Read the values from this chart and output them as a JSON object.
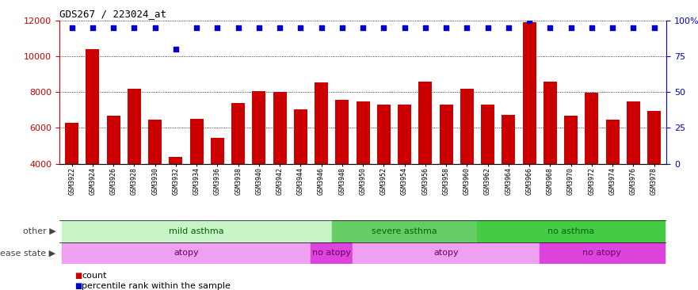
{
  "title": "GDS267 / 223024_at",
  "samples": [
    "GSM3922",
    "GSM3924",
    "GSM3926",
    "GSM3928",
    "GSM3930",
    "GSM3932",
    "GSM3934",
    "GSM3936",
    "GSM3938",
    "GSM3940",
    "GSM3942",
    "GSM3944",
    "GSM3946",
    "GSM3948",
    "GSM3950",
    "GSM3952",
    "GSM3954",
    "GSM3956",
    "GSM3958",
    "GSM3960",
    "GSM3962",
    "GSM3964",
    "GSM3966",
    "GSM3968",
    "GSM3970",
    "GSM3972",
    "GSM3974",
    "GSM3976",
    "GSM3978"
  ],
  "values": [
    6300,
    10400,
    6700,
    8200,
    6450,
    4400,
    6500,
    5450,
    7400,
    8050,
    8000,
    7050,
    8550,
    7550,
    7500,
    7300,
    7300,
    8600,
    7300,
    8200,
    7300,
    6750,
    11900,
    8600,
    6700,
    7950,
    6450,
    7500,
    6950
  ],
  "percentile_values": [
    95,
    95,
    95,
    95,
    95,
    80,
    95,
    95,
    95,
    95,
    95,
    95,
    95,
    95,
    95,
    95,
    95,
    95,
    95,
    95,
    95,
    95,
    100,
    95,
    95,
    95,
    95,
    95,
    95
  ],
  "ylim_left": [
    4000,
    12000
  ],
  "yticks_left": [
    4000,
    6000,
    8000,
    10000,
    12000
  ],
  "yticks_right": [
    0,
    25,
    50,
    75,
    100
  ],
  "bar_color": "#cc0000",
  "dot_color": "#0000cc",
  "groups": [
    {
      "label": "mild asthma",
      "start": 0,
      "end": 12,
      "color": "#c8f5c8"
    },
    {
      "label": "severe asthma",
      "start": 13,
      "end": 19,
      "color": "#66cc66"
    },
    {
      "label": "no asthma",
      "start": 20,
      "end": 28,
      "color": "#44cc44"
    }
  ],
  "diseases": [
    {
      "label": "atopy",
      "start": 0,
      "end": 11,
      "color": "#f0a0f0"
    },
    {
      "label": "no atopy",
      "start": 12,
      "end": 13,
      "color": "#dd44dd"
    },
    {
      "label": "atopy",
      "start": 14,
      "end": 22,
      "color": "#f0a0f0"
    },
    {
      "label": "no atopy",
      "start": 23,
      "end": 28,
      "color": "#dd44dd"
    }
  ],
  "other_label": "other",
  "disease_label": "disease state",
  "legend_count": "count",
  "legend_pct": "percentile rank within the sample"
}
